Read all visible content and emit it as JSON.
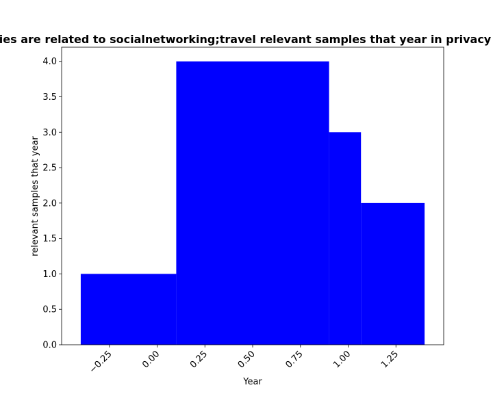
{
  "chart_data": {
    "type": "bar",
    "title": "ies are related to socialnetworking;travel relevant samples that year in privacy",
    "xlabel": "Year",
    "ylabel": "relevant samples that year",
    "xlim": [
      -0.5,
      1.5
    ],
    "ylim": [
      0,
      4.2
    ],
    "x_ticks": [
      -0.25,
      0.0,
      0.25,
      0.5,
      0.75,
      1.0,
      1.25
    ],
    "x_tick_labels": [
      "−0.25",
      "0.00",
      "0.25",
      "0.50",
      "0.75",
      "1.00",
      "1.25"
    ],
    "y_ticks": [
      0.0,
      0.5,
      1.0,
      1.5,
      2.0,
      2.5,
      3.0,
      3.5,
      4.0
    ],
    "y_tick_labels": [
      "0.0",
      "0.5",
      "1.0",
      "1.5",
      "2.0",
      "2.5",
      "3.0",
      "3.5",
      "4.0"
    ],
    "bars": [
      {
        "x0": -0.4,
        "x1": 0.1,
        "value": 1
      },
      {
        "x0": 0.1,
        "x1": 0.9,
        "value": 4
      },
      {
        "x0": 0.9,
        "x1": 1.067,
        "value": 3
      },
      {
        "x0": 1.067,
        "x1": 1.4,
        "value": 2
      }
    ],
    "bar_color": "#0000ff",
    "grid": false,
    "legend": "none"
  }
}
